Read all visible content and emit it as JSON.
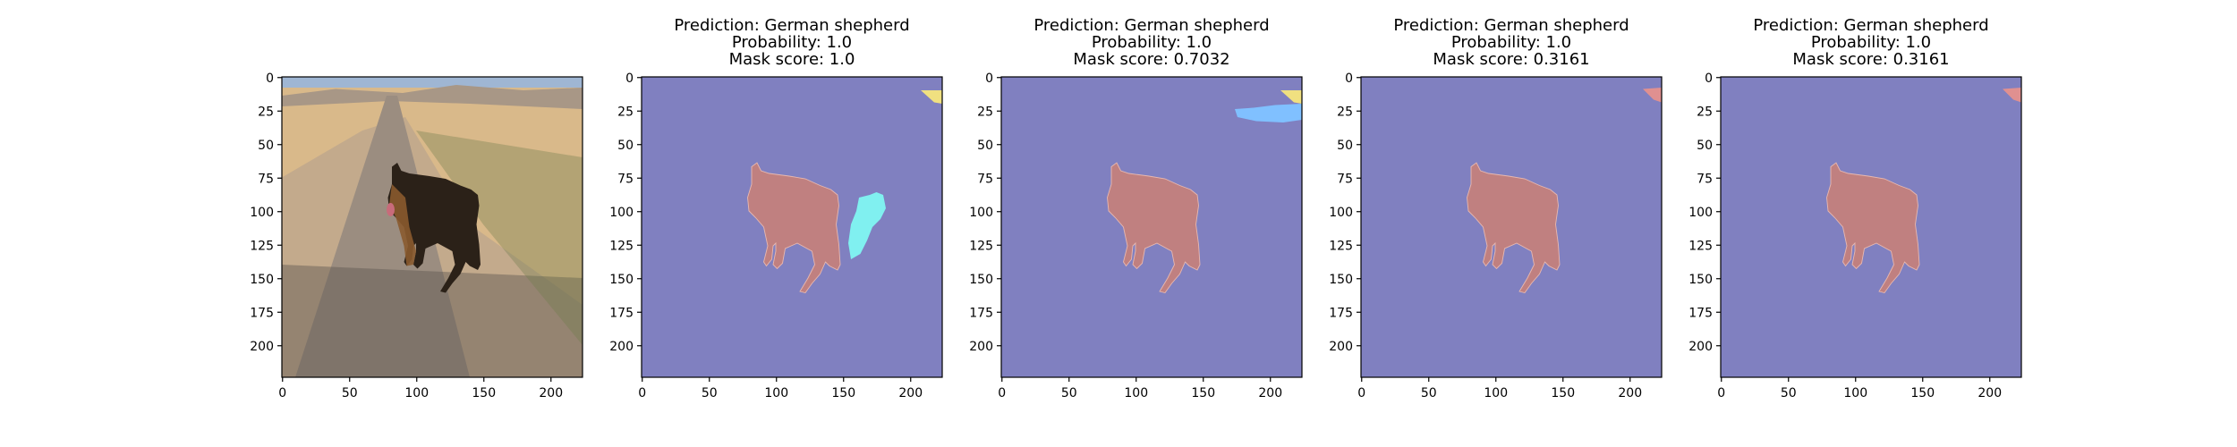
{
  "figure": {
    "panels": [
      {
        "kind": "photo",
        "title_lines": [],
        "xticks": [
          "0",
          "50",
          "100",
          "150",
          "200"
        ],
        "yticks": [
          "0",
          "25",
          "50",
          "75",
          "100",
          "125",
          "150",
          "175",
          "200"
        ]
      },
      {
        "kind": "mask",
        "title_lines": [
          "Prediction: German shepherd",
          "Probability: 1.0",
          "Mask score: 1.0"
        ],
        "xticks": [
          "0",
          "50",
          "100",
          "150",
          "200"
        ],
        "yticks": [
          "0",
          "25",
          "50",
          "75",
          "100",
          "125",
          "150",
          "175",
          "200"
        ],
        "extra_regions": [
          "top-right-yellow",
          "right-cyan-blob"
        ]
      },
      {
        "kind": "mask",
        "title_lines": [
          "Prediction: German shepherd",
          "Probability: 1.0",
          "Mask score: 0.7032"
        ],
        "xticks": [
          "0",
          "50",
          "100",
          "150",
          "200"
        ],
        "yticks": [
          "0",
          "25",
          "50",
          "75",
          "100",
          "125",
          "150",
          "175",
          "200"
        ],
        "extra_regions": [
          "top-right-yellow",
          "top-right-cyan-streak"
        ]
      },
      {
        "kind": "mask",
        "title_lines": [
          "Prediction: German shepherd",
          "Probability: 1.0",
          "Mask score: 0.3161"
        ],
        "xticks": [
          "0",
          "50",
          "100",
          "150",
          "200"
        ],
        "yticks": [
          "0",
          "25",
          "50",
          "75",
          "100",
          "125",
          "150",
          "175",
          "200"
        ],
        "extra_regions": [
          "top-right-salmon"
        ]
      },
      {
        "kind": "mask",
        "title_lines": [
          "Prediction: German shepherd",
          "Probability: 1.0",
          "Mask score: 0.3161"
        ],
        "xticks": [
          "0",
          "50",
          "100",
          "150",
          "200"
        ],
        "yticks": [
          "0",
          "25",
          "50",
          "75",
          "100",
          "125",
          "150",
          "175",
          "200"
        ],
        "extra_regions": [
          "top-right-salmon"
        ]
      }
    ],
    "colors": {
      "background_mask": "#8080c0",
      "dog_mask": "#c08080",
      "cyan_region": "#80f0f0",
      "light_blue_region": "#80c0ff",
      "yellow_region": "#f0e080",
      "salmon_region": "#e09090",
      "sky": "#9fb6d3",
      "hills": "#a89786",
      "field": "#d9b98a",
      "road": "#9b8d80",
      "dog_dark": "#2b2118",
      "dog_tan": "#8a5a2e"
    }
  }
}
